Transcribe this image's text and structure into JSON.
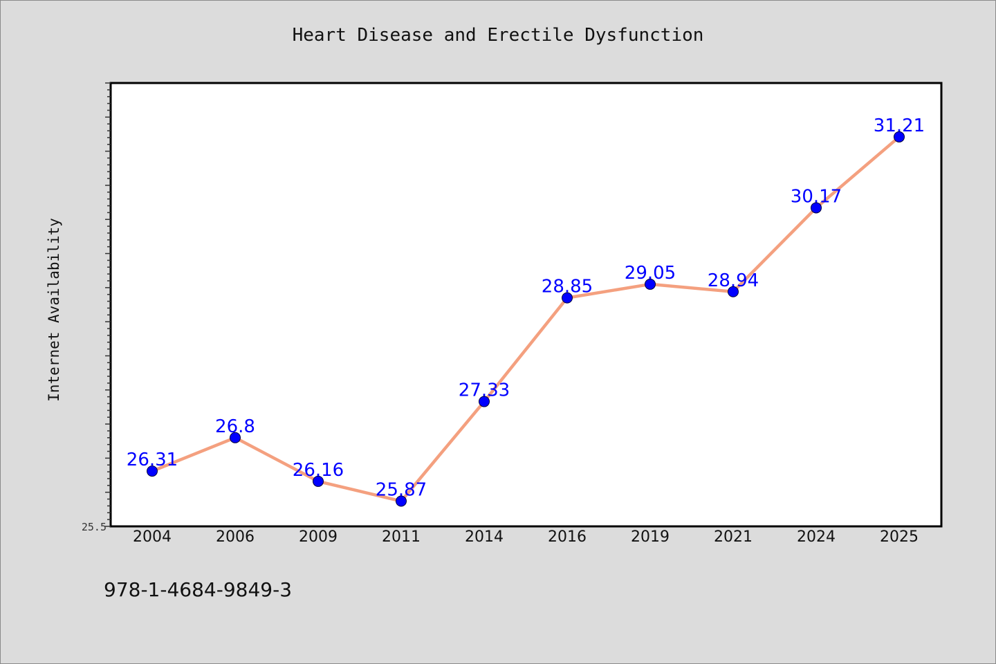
{
  "chart_data": {
    "type": "line",
    "title": "Heart Disease and Erectile Dysfunction",
    "xlabel": "",
    "ylabel": "Internet Availability",
    "categories": [
      "2004",
      "2006",
      "2009",
      "2011",
      "2014",
      "2016",
      "2019",
      "2021",
      "2024",
      "2025"
    ],
    "values": [
      26.31,
      26.8,
      26.16,
      25.87,
      27.33,
      28.85,
      29.05,
      28.94,
      30.17,
      31.21
    ],
    "data_labels": [
      "26.31",
      "26.8",
      "26.16",
      "25.87",
      "27.33",
      "28.85",
      "29.05",
      "28.94",
      "30.17",
      "31.21"
    ],
    "ylim": [
      25.5,
      32.0
    ],
    "y_tick_labels": [
      "25.5"
    ],
    "grid": false,
    "legend": "none",
    "colors": {
      "line": "#f4a07f",
      "marker": "#0000ff",
      "label": "#0000ff",
      "plot_background": "#ffffff",
      "page_background": "#dcdcdc"
    }
  },
  "footer": {
    "code": "978-1-4684-9849-3"
  }
}
